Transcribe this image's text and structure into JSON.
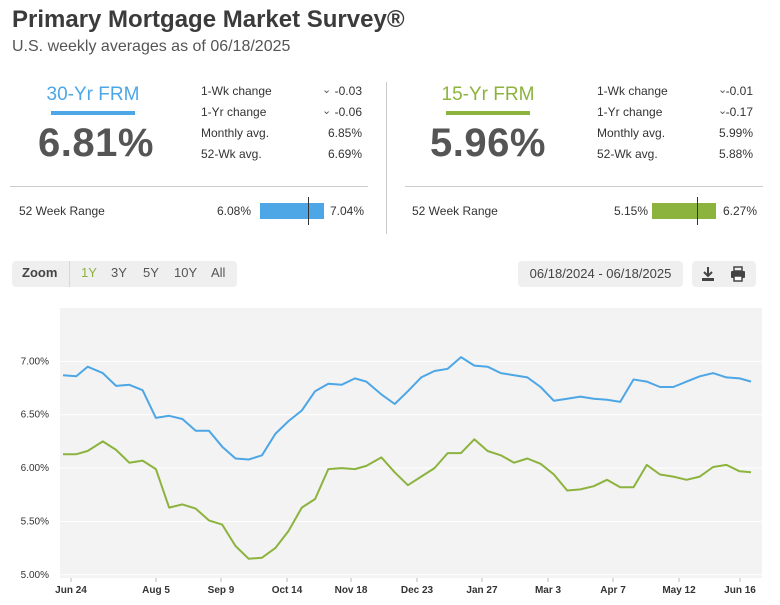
{
  "header": {
    "title": "Primary Mortgage Market Survey®",
    "subtitle": "U.S. weekly averages as of 06/18/2025"
  },
  "fixed30": {
    "label": "30-Yr FRM",
    "rate": "6.81%",
    "color": "#4da6e6",
    "stats": [
      {
        "label": "1-Wk change",
        "value": "-0.03",
        "direction": "down"
      },
      {
        "label": "1-Yr change",
        "value": "-0.06",
        "direction": "down"
      },
      {
        "label": "Monthly avg.",
        "value": "6.85%"
      },
      {
        "label": "52-Wk avg.",
        "value": "6.69%"
      }
    ],
    "range": {
      "label": "52 Week Range",
      "low": "6.08%",
      "high": "7.04%",
      "current_fraction": 0.76
    }
  },
  "fixed15": {
    "label": "15-Yr FRM",
    "rate": "5.96%",
    "color": "#8cb33e",
    "stats": [
      {
        "label": "1-Wk change",
        "value": "-0.01",
        "direction": "down"
      },
      {
        "label": "1-Yr change",
        "value": "-0.17",
        "direction": "down"
      },
      {
        "label": "Monthly avg.",
        "value": "5.99%"
      },
      {
        "label": "52-Wk avg.",
        "value": "5.88%"
      }
    ],
    "range": {
      "label": "52 Week Range",
      "low": "5.15%",
      "high": "6.27%",
      "current_fraction": 0.72
    }
  },
  "toolbar": {
    "zoom_label": "Zoom",
    "zoom_options": [
      "1Y",
      "3Y",
      "5Y",
      "10Y",
      "All"
    ],
    "active_zoom": "1Y",
    "date_range": "06/18/2024 - 06/18/2025",
    "icons": [
      "download-icon",
      "print-icon"
    ]
  },
  "chart_data": {
    "type": "line",
    "title": "",
    "xlabel": "",
    "ylabel": "",
    "ylim": [
      4.97,
      7.5
    ],
    "yticks": [
      "5.00%",
      "5.50%",
      "6.00%",
      "6.50%",
      "7.00%"
    ],
    "xticks": [
      "Jun 24",
      "Aug 5",
      "Sep 9",
      "Oct 14",
      "Nov 18",
      "Dec 23",
      "Jan 27",
      "Mar 3",
      "Apr 7",
      "May 12",
      "Jun 16"
    ],
    "x": [
      "2024-06-20",
      "2024-06-27",
      "2024-07-03",
      "2024-07-11",
      "2024-07-18",
      "2024-07-25",
      "2024-08-01",
      "2024-08-08",
      "2024-08-15",
      "2024-08-22",
      "2024-08-29",
      "2024-09-05",
      "2024-09-12",
      "2024-09-19",
      "2024-09-26",
      "2024-10-03",
      "2024-10-10",
      "2024-10-17",
      "2024-10-24",
      "2024-10-31",
      "2024-11-07",
      "2024-11-14",
      "2024-11-21",
      "2024-11-27",
      "2024-12-05",
      "2024-12-12",
      "2024-12-19",
      "2024-12-26",
      "2025-01-02",
      "2025-01-09",
      "2025-01-16",
      "2025-01-23",
      "2025-01-30",
      "2025-02-06",
      "2025-02-13",
      "2025-02-20",
      "2025-02-27",
      "2025-03-06",
      "2025-03-13",
      "2025-03-20",
      "2025-03-27",
      "2025-04-03",
      "2025-04-10",
      "2025-04-17",
      "2025-04-24",
      "2025-05-01",
      "2025-05-08",
      "2025-05-15",
      "2025-05-22",
      "2025-05-29",
      "2025-06-05",
      "2025-06-12",
      "2025-06-18"
    ],
    "series": [
      {
        "name": "30-Yr FRM",
        "color": "#4da6e6",
        "values": [
          6.87,
          6.86,
          6.95,
          6.89,
          6.77,
          6.78,
          6.73,
          6.47,
          6.49,
          6.46,
          6.35,
          6.35,
          6.2,
          6.09,
          6.08,
          6.12,
          6.32,
          6.44,
          6.54,
          6.72,
          6.79,
          6.78,
          6.84,
          6.81,
          6.69,
          6.6,
          6.72,
          6.85,
          6.91,
          6.93,
          7.04,
          6.96,
          6.95,
          6.89,
          6.87,
          6.85,
          6.76,
          6.63,
          6.65,
          6.67,
          6.65,
          6.64,
          6.62,
          6.83,
          6.81,
          6.76,
          6.76,
          6.81,
          6.86,
          6.89,
          6.85,
          6.84,
          6.81
        ]
      },
      {
        "name": "15-Yr FRM",
        "color": "#8cb33e",
        "values": [
          6.13,
          6.13,
          6.16,
          6.25,
          6.17,
          6.05,
          6.07,
          5.99,
          5.63,
          5.66,
          5.62,
          5.51,
          5.47,
          5.27,
          5.15,
          5.16,
          5.25,
          5.41,
          5.63,
          5.71,
          5.99,
          6.0,
          5.99,
          6.02,
          6.1,
          5.96,
          5.84,
          5.92,
          6.0,
          6.14,
          6.14,
          6.27,
          6.16,
          6.12,
          6.05,
          6.09,
          6.04,
          5.94,
          5.79,
          5.8,
          5.83,
          5.89,
          5.82,
          5.82,
          6.03,
          5.94,
          5.92,
          5.89,
          5.92,
          6.01,
          6.03,
          5.97,
          5.96
        ]
      }
    ]
  }
}
